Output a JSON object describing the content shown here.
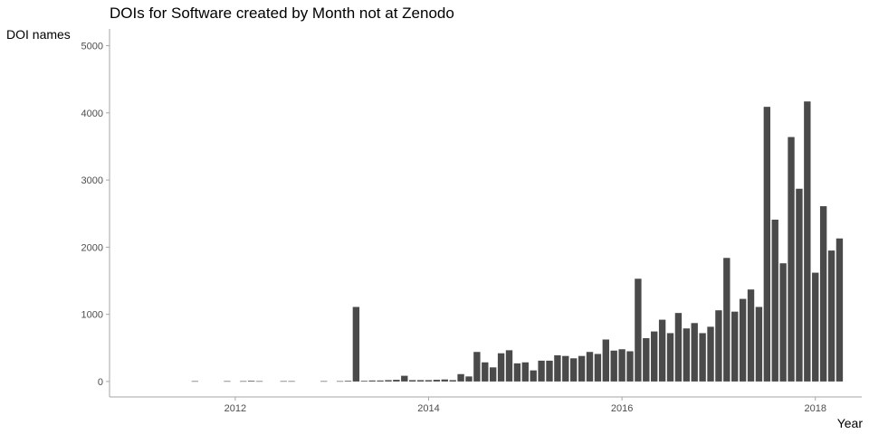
{
  "chart_data": {
    "type": "bar",
    "title": "DOIs for Software created by Month not at Zenodo",
    "xlabel": "Year",
    "ylabel": "DOI names",
    "bar_color": "#4a4a4a",
    "axis_color": "#a6a6a6",
    "xlim": [
      2010.7,
      2018.48
    ],
    "ylim": [
      -230,
      5250
    ],
    "x_ticks": [
      2012,
      2014,
      2016,
      2018
    ],
    "x_tick_labels": [
      "2012",
      "2014",
      "2016",
      "2018"
    ],
    "y_ticks": [
      0,
      1000,
      2000,
      3000,
      4000,
      5000
    ],
    "y_tick_labels": [
      "0",
      "1000",
      "2000",
      "3000",
      "4000",
      "5000"
    ],
    "bar_width_years": 0.069,
    "start_year": 2011,
    "start_month": 8,
    "values": [
      5,
      0,
      0,
      0,
      5,
      0,
      5,
      10,
      5,
      0,
      0,
      5,
      5,
      0,
      0,
      0,
      5,
      0,
      5,
      10,
      1110,
      10,
      15,
      15,
      20,
      25,
      85,
      20,
      20,
      20,
      25,
      30,
      20,
      110,
      75,
      440,
      285,
      210,
      420,
      465,
      270,
      285,
      165,
      310,
      310,
      390,
      380,
      345,
      380,
      440,
      410,
      625,
      460,
      480,
      450,
      1530,
      645,
      745,
      920,
      720,
      1020,
      790,
      870,
      720,
      815,
      1060,
      1840,
      1040,
      1230,
      1370,
      1110,
      4090,
      2410,
      1760,
      3640,
      2870,
      4170,
      1620,
      2610,
      1950,
      2130
    ]
  }
}
